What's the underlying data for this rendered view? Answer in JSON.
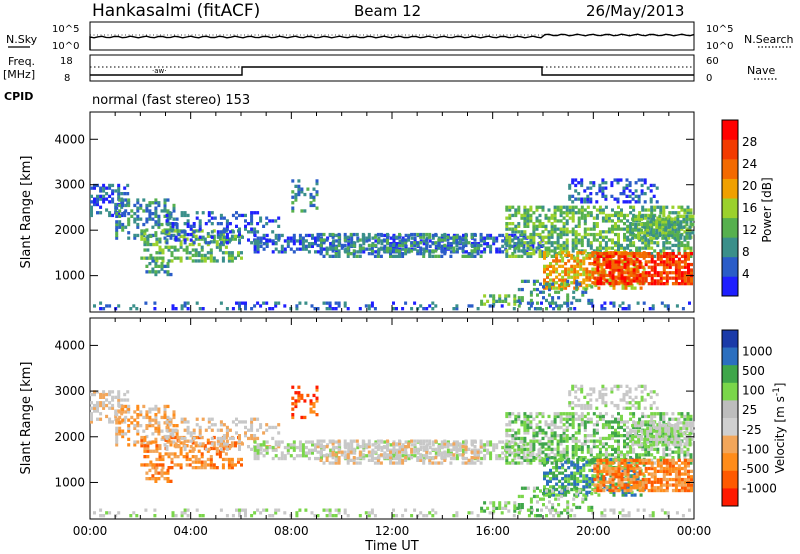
{
  "header": {
    "station": "Hankasalmi (fitACF)",
    "beam": "Beam 12",
    "date": "26/May/2013"
  },
  "strips": {
    "nsky_label": "N.Sky",
    "nsearch_label": "N.Search",
    "freq_label_1": "Freq.",
    "freq_label_2": "[MHz]",
    "nave_label": "Nave",
    "cpid_label": "CPID",
    "cpid_value": "normal (fast stereo) 153",
    "nsky_tick_top": "10^5",
    "nsky_tick_bottom": "10^0",
    "nsearch_tick_top": "10^5",
    "nsearch_tick_bottom": "10^0",
    "freq_tick_top": "18",
    "freq_tick_bottom": "8",
    "nave_tick_top": "60",
    "nave_tick_bottom": "0"
  },
  "colors": {
    "power_scale": [
      "#1f1fff",
      "#2a5cc8",
      "#3a8f8a",
      "#56b04e",
      "#9bd12c",
      "#f0a000",
      "#f36a00",
      "#f23a00",
      "#ff0000"
    ],
    "velocity_scale": [
      "#ff1a00",
      "#ff5a00",
      "#ff8c1a",
      "#f2a65a",
      "#cfcfcf",
      "#bdbdbd",
      "#7ad64a",
      "#3fa64a",
      "#2b6fbf",
      "#1a3aa8"
    ],
    "ground_scatter": "#c8c8c8"
  },
  "chart_data": [
    {
      "type": "heatmap",
      "title": "Power",
      "xlabel": "",
      "ylabel": "Slant Range [km]",
      "x_ticks": [
        "00:00",
        "04:00",
        "08:00",
        "12:00",
        "16:00",
        "20:00",
        "00:00"
      ],
      "y_ticks": [
        "1000",
        "2000",
        "3000",
        "4000"
      ],
      "ylim": [
        200,
        4600
      ],
      "colorbar": {
        "label": "Power [dB]",
        "ticks": [
          "4",
          "8",
          "12",
          "16",
          "20",
          "24",
          "28"
        ],
        "range": [
          0,
          32
        ]
      }
    },
    {
      "type": "heatmap",
      "title": "Velocity",
      "xlabel": "Time UT",
      "ylabel": "Slant Range [km]",
      "x_ticks": [
        "00:00",
        "04:00",
        "08:00",
        "12:00",
        "16:00",
        "20:00",
        "00:00"
      ],
      "y_ticks": [
        "1000",
        "2000",
        "3000",
        "4000"
      ],
      "ylim": [
        200,
        4600
      ],
      "colorbar": {
        "label": "Velocity [m s^-1]",
        "ticks": [
          "1000",
          "500",
          "100",
          "25",
          "-25",
          "-100",
          "-500",
          "-1000"
        ]
      }
    }
  ]
}
